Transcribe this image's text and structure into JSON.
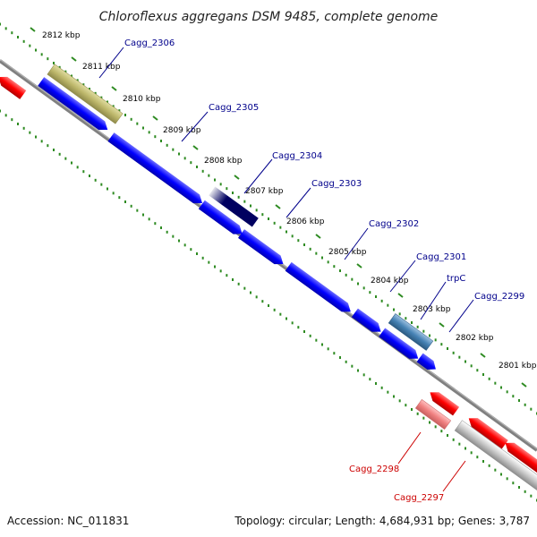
{
  "title": "Chloroflexus aggregans DSM 9485, complete genome",
  "accession": "Accession: NC_011831",
  "summary": "Topology: circular; Length: 4,684,931 bp; Genes: 3,787",
  "kbp_labels": [
    "2812 kbp",
    "2811 kbp",
    "2810 kbp",
    "2809 kbp",
    "2808 kbp",
    "2807 kbp",
    "2806 kbp",
    "2805 kbp",
    "2804 kbp",
    "2803 kbp",
    "2802 kbp",
    "2801 kbp"
  ],
  "gene_labels_top": [
    "Cagg_2306",
    "Cagg_2305",
    "Cagg_2304",
    "Cagg_2303",
    "Cagg_2302",
    "Cagg_2301",
    "trpC",
    "Cagg_2299"
  ],
  "gene_labels_bottom": [
    "Cagg_2298",
    "Cagg_2297"
  ],
  "colors": {
    "forward_cds": "#0000ff",
    "reverse_cds": "#ff0000",
    "backbone": "#808080",
    "tick": "#2e8b22",
    "label_blue": "#00008b",
    "label_red": "#cc0000"
  }
}
